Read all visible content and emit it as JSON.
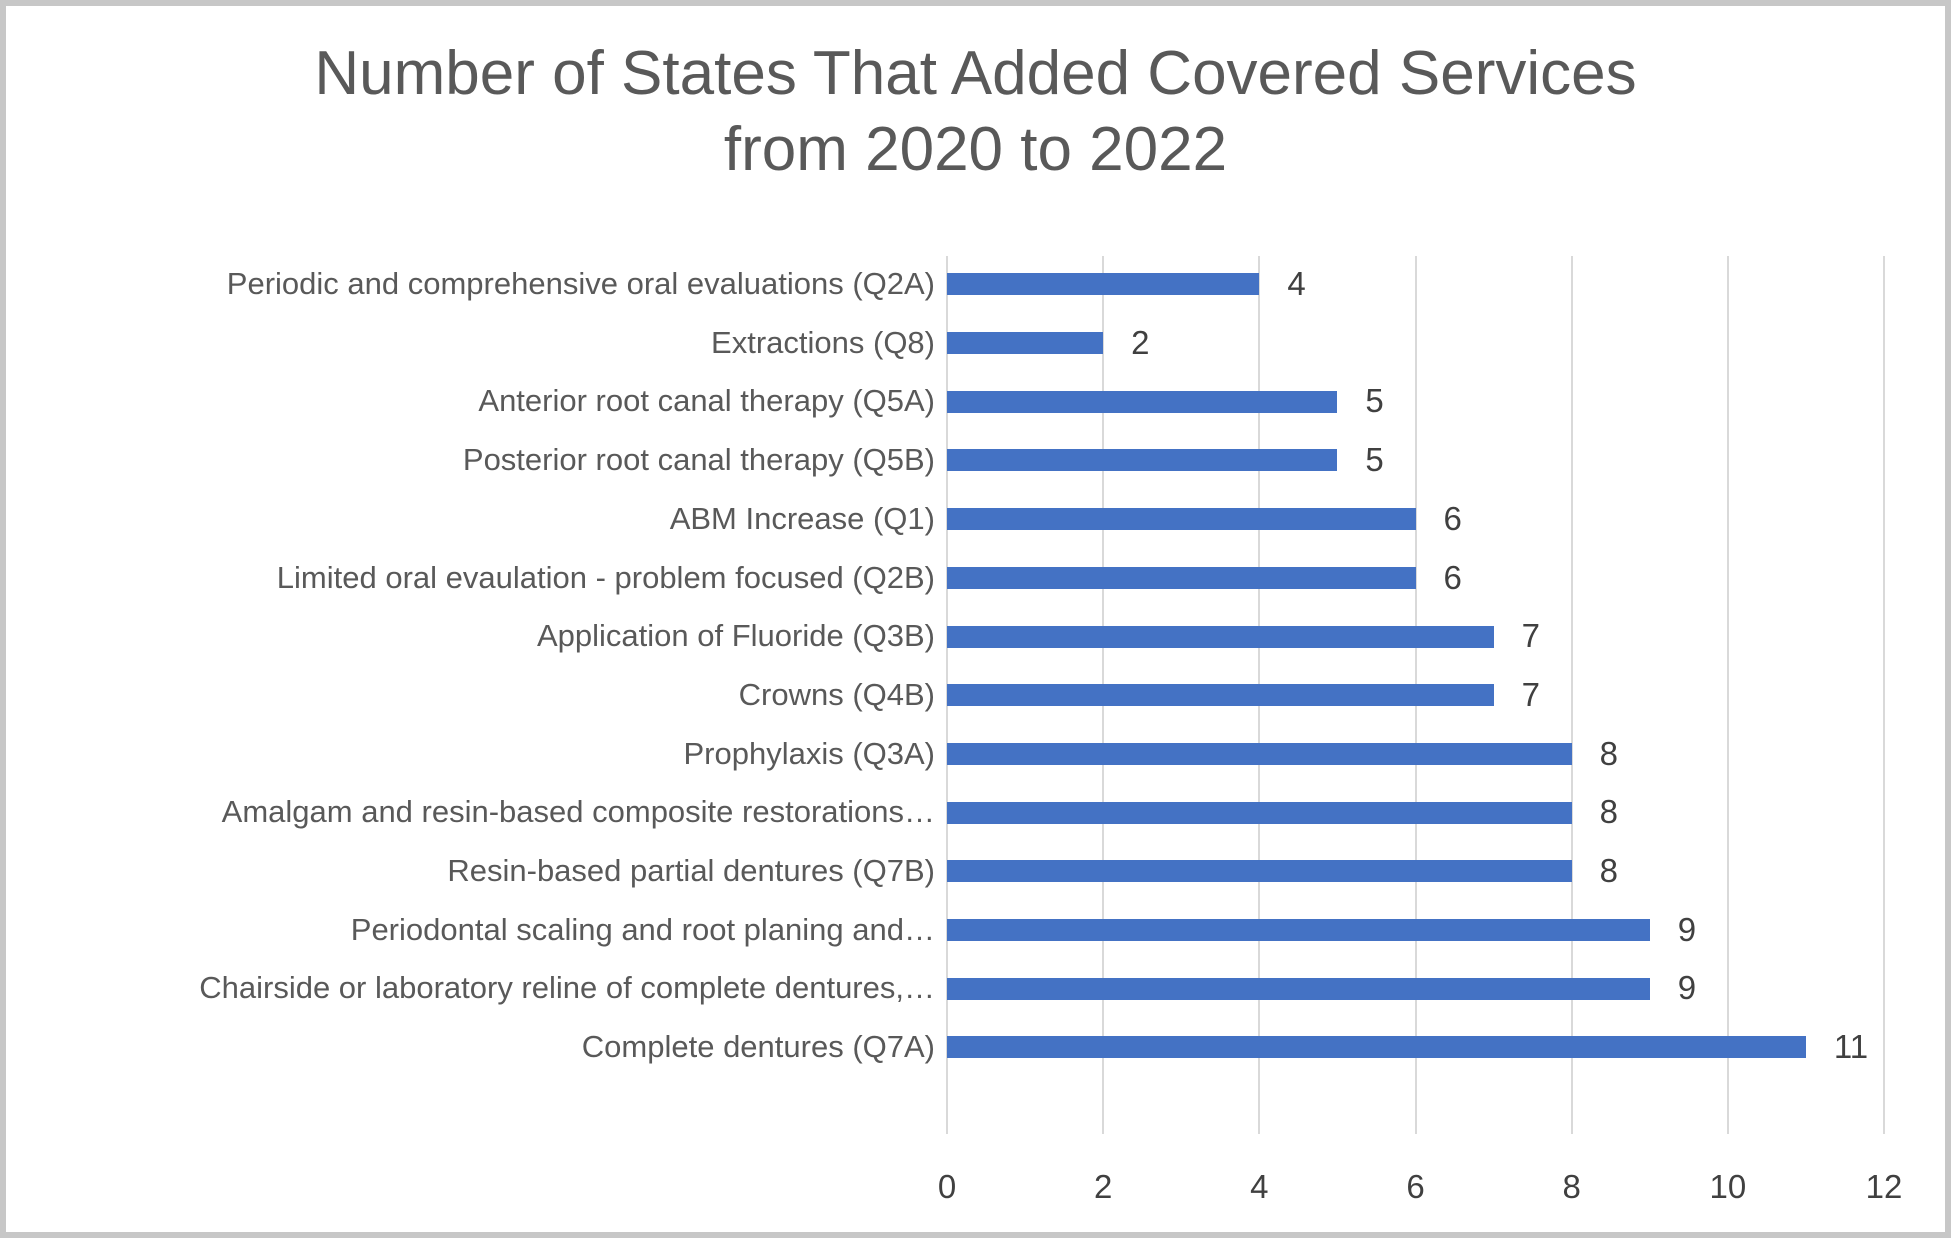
{
  "chart_data": {
    "type": "bar",
    "orientation": "horizontal",
    "title_lines": [
      "Number of States That Added Covered Services",
      "from 2020 to 2022"
    ],
    "categories": [
      "Periodic and comprehensive oral evaluations (Q2A)",
      "Extractions (Q8)",
      "Anterior root canal therapy (Q5A)",
      "Posterior root canal therapy (Q5B)",
      "ABM Increase (Q1)",
      "Limited oral evaulation - problem focused (Q2B)",
      "Application of Fluoride (Q3B)",
      "Crowns (Q4B)",
      "Prophylaxis (Q3A)",
      "Amalgam and resin-based composite restorations…",
      "Resin-based partial dentures (Q7B)",
      "Periodontal scaling and root planing and…",
      "Chairside or laboratory reline of complete dentures,…",
      "Complete dentures (Q7A)"
    ],
    "values": [
      4,
      2,
      5,
      5,
      6,
      6,
      7,
      7,
      8,
      8,
      8,
      9,
      9,
      11
    ],
    "xlabel": "",
    "ylabel": "",
    "xlim": [
      0,
      12
    ],
    "x_ticks": [
      0,
      2,
      4,
      6,
      8,
      10,
      12
    ],
    "grid": true,
    "legend": false,
    "value_labels_shown": true,
    "bar_color": "#4472C4",
    "gridline_color": "#d9d9d9",
    "title_color": "#595959",
    "label_color": "#595959",
    "number_color": "#404040"
  },
  "layout_note": "single horizontal bar chart, no legend"
}
